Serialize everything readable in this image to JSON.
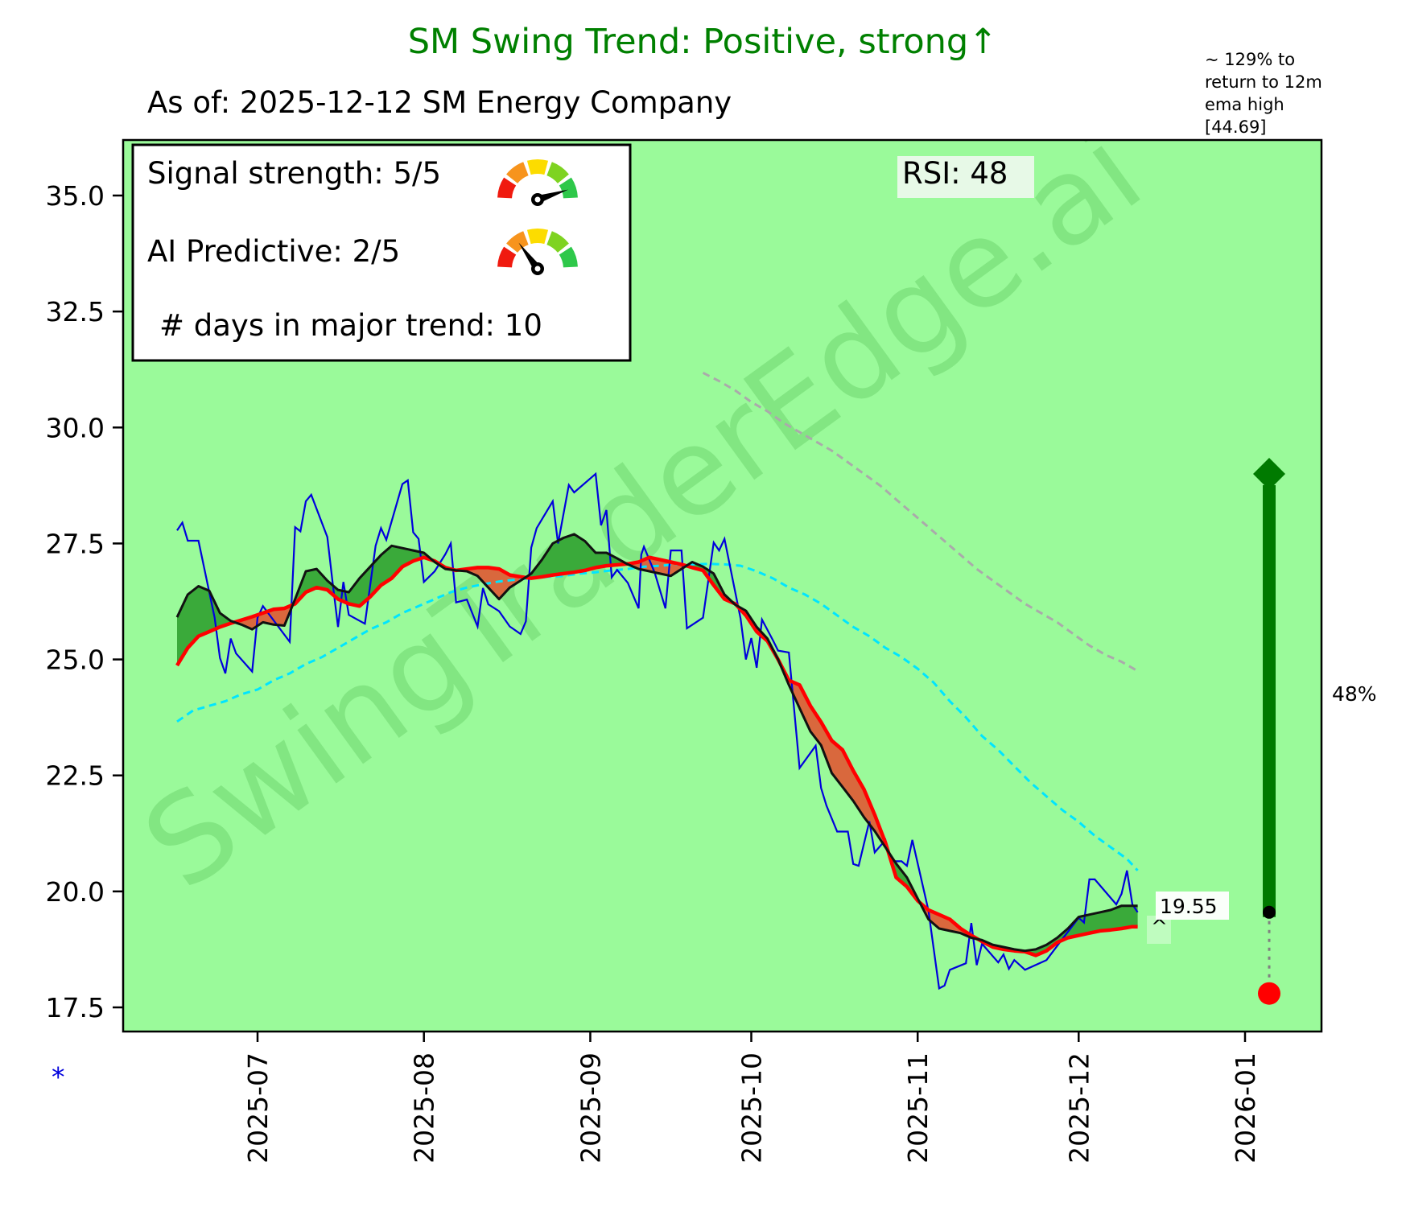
{
  "header": {
    "title": "SM  Swing Trend: Positive, strong↑",
    "subtitle": "As of: 2025-12-12    SM Energy Company",
    "ema_note_lines": [
      "~ 129% to",
      "return to 12m",
      "ema high",
      "[44.69]"
    ]
  },
  "legend": {
    "signal_strength": "Signal strength: 5/5",
    "signal_value": 5,
    "ai_predictive": "AI Predictive: 2/5",
    "ai_value": 2,
    "days_in_trend": "# days in major trend: 10",
    "gauge_colors": [
      "#f01a0f",
      "#f7941d",
      "#fcdc00",
      "#7ed321",
      "#2ec84a"
    ]
  },
  "rsi_label": "RSI:  48",
  "watermark": "SwingTraderEdge.ai",
  "footnote_marker": "*",
  "colors": {
    "background": "#9afa9a",
    "close": "#0000dd",
    "fast_ema": "#111111",
    "slow_ema": "#ff0000",
    "mid_ema": "#00e5ff",
    "long_ema": "#aaaaaa",
    "fill_up": "#3aaa3a",
    "fill_down": "#d9683d",
    "arrow": "#007a00",
    "target_dot": "#ff0000"
  },
  "chart_data": {
    "type": "line",
    "title": "SM  Swing Trend: Positive, strong↑",
    "xlabel": "",
    "ylabel": "",
    "x_origin_date": "2025-07-01",
    "x_units": "days since 2025-07-01",
    "xlim": [
      -25,
      202
    ],
    "ylim": [
      17.0,
      36.2
    ],
    "x_ticks": [
      {
        "day": 0,
        "label": "2025-07"
      },
      {
        "day": 31,
        "label": "2025-08"
      },
      {
        "day": 62,
        "label": "2025-09"
      },
      {
        "day": 92,
        "label": "2025-10"
      },
      {
        "day": 123,
        "label": "2025-11"
      },
      {
        "day": 153,
        "label": "2025-12"
      },
      {
        "day": 184,
        "label": "2026-01"
      }
    ],
    "y_ticks": [
      {
        "value": 17.5,
        "label": "17.5"
      },
      {
        "value": 20.0,
        "label": "20.0"
      },
      {
        "value": 22.5,
        "label": "22.5"
      },
      {
        "value": 25.0,
        "label": "25.0"
      },
      {
        "value": 27.5,
        "label": "27.5"
      },
      {
        "value": 30.0,
        "label": "30.0"
      },
      {
        "value": 32.5,
        "label": "32.5"
      },
      {
        "value": 35.0,
        "label": "35.0"
      }
    ],
    "grid": false,
    "series": [
      {
        "name": "close",
        "x": [
          -15,
          -14,
          -13,
          -11,
          -8,
          -7,
          -6,
          -5,
          -4,
          -1,
          0,
          1,
          6,
          7,
          8,
          9,
          10,
          13,
          14,
          15,
          16,
          17,
          20,
          22,
          23,
          24,
          27,
          28,
          29,
          30,
          31,
          33,
          35,
          36,
          37,
          39,
          41,
          42,
          43,
          45,
          47,
          49,
          50,
          51,
          52,
          55,
          56,
          58,
          59,
          63,
          64,
          65,
          66,
          67,
          69,
          71,
          71.5,
          72,
          74,
          76,
          77,
          79,
          80,
          83,
          85,
          86,
          87,
          90,
          91,
          92,
          93,
          94,
          96,
          97,
          99,
          101,
          104,
          105,
          106,
          108,
          110,
          111,
          112,
          114,
          115,
          117,
          118,
          120,
          121,
          122,
          125,
          127,
          128,
          129,
          132,
          133,
          134,
          135,
          138,
          139,
          140,
          141,
          143,
          147,
          150,
          153,
          154,
          155,
          156,
          160,
          161,
          162,
          163,
          164
        ],
        "y": [
          27.78,
          27.95,
          27.56,
          27.56,
          25.9,
          25.03,
          24.7,
          25.45,
          25.13,
          24.74,
          25.9,
          26.15,
          25.38,
          27.85,
          27.76,
          28.41,
          28.55,
          27.64,
          26.64,
          25.7,
          26.67,
          25.96,
          25.77,
          27.45,
          27.83,
          27.58,
          28.78,
          28.86,
          27.74,
          27.6,
          26.67,
          26.9,
          27.27,
          27.5,
          26.23,
          26.29,
          25.71,
          26.54,
          26.19,
          26.04,
          25.71,
          25.55,
          25.82,
          27.41,
          27.83,
          28.41,
          27.5,
          28.76,
          28.6,
          29.0,
          27.89,
          28.22,
          26.77,
          26.93,
          26.65,
          26.1,
          27.26,
          27.43,
          26.87,
          26.1,
          27.35,
          27.35,
          25.67,
          25.9,
          27.52,
          27.35,
          27.6,
          25.88,
          25.0,
          25.46,
          24.82,
          25.86,
          25.42,
          25.19,
          25.15,
          22.66,
          23.14,
          22.23,
          21.85,
          21.29,
          21.29,
          20.59,
          20.55,
          21.51,
          20.84,
          21.11,
          20.65,
          20.65,
          20.55,
          21.11,
          19.59,
          17.91,
          17.97,
          18.31,
          18.45,
          19.32,
          18.41,
          18.87,
          18.47,
          18.64,
          18.33,
          18.52,
          18.31,
          18.52,
          18.98,
          19.43,
          19.33,
          20.26,
          20.26,
          19.72,
          19.95,
          20.45,
          19.72,
          19.55
        ]
      },
      {
        "name": "fast_ema",
        "x": [
          -15,
          -13,
          -11,
          -9,
          -7,
          -5,
          -3,
          -1,
          1,
          3,
          5,
          7,
          9,
          11,
          13,
          15,
          17,
          19,
          21,
          23,
          25,
          27,
          29,
          31,
          33,
          35,
          37,
          39,
          41,
          43,
          45,
          47,
          49,
          51,
          53,
          55,
          57,
          59,
          61,
          63,
          65,
          67,
          69,
          71,
          73,
          75,
          77,
          79,
          81,
          83,
          85,
          87,
          89,
          91,
          93,
          95,
          97,
          99,
          101,
          103,
          105,
          107,
          109,
          111,
          113,
          115,
          117,
          119,
          121,
          123,
          125,
          127,
          129,
          131,
          133,
          135,
          137,
          139,
          141,
          143,
          145,
          147,
          149,
          151,
          153,
          155,
          157,
          159,
          161,
          163,
          164
        ],
        "y": [
          25.91,
          26.4,
          26.58,
          26.48,
          26.0,
          25.83,
          25.75,
          25.65,
          25.8,
          25.75,
          25.73,
          26.3,
          26.9,
          26.95,
          26.7,
          26.5,
          26.45,
          26.75,
          27.0,
          27.25,
          27.45,
          27.4,
          27.35,
          27.3,
          27.1,
          26.95,
          26.92,
          26.9,
          26.8,
          26.55,
          26.3,
          26.55,
          26.7,
          26.85,
          27.15,
          27.5,
          27.62,
          27.7,
          27.55,
          27.3,
          27.3,
          27.18,
          27.05,
          26.95,
          26.9,
          26.85,
          26.8,
          26.95,
          27.1,
          27.0,
          26.85,
          26.4,
          26.18,
          26.05,
          25.7,
          25.45,
          25.0,
          24.45,
          23.95,
          23.45,
          23.15,
          22.55,
          22.25,
          21.95,
          21.6,
          21.3,
          20.95,
          20.6,
          20.3,
          19.85,
          19.4,
          19.2,
          19.15,
          19.1,
          19.0,
          18.95,
          18.85,
          18.8,
          18.75,
          18.72,
          18.75,
          18.85,
          19.0,
          19.2,
          19.45,
          19.5,
          19.55,
          19.6,
          19.69,
          19.69,
          19.69
        ]
      },
      {
        "name": "slow_ema",
        "x": [
          -15,
          -13,
          -11,
          -9,
          -7,
          -5,
          -3,
          -1,
          1,
          3,
          5,
          7,
          9,
          11,
          13,
          15,
          17,
          19,
          21,
          23,
          25,
          27,
          29,
          31,
          33,
          35,
          37,
          39,
          41,
          43,
          45,
          47,
          49,
          51,
          53,
          55,
          57,
          59,
          61,
          63,
          65,
          67,
          69,
          71,
          73,
          75,
          77,
          79,
          81,
          83,
          85,
          87,
          89,
          91,
          93,
          95,
          97,
          99,
          101,
          103,
          105,
          107,
          109,
          111,
          113,
          115,
          117,
          119,
          121,
          123,
          125,
          127,
          129,
          131,
          133,
          135,
          137,
          139,
          141,
          143,
          145,
          147,
          149,
          151,
          153,
          155,
          157,
          159,
          161,
          163,
          164
        ],
        "y": [
          24.87,
          25.25,
          25.5,
          25.6,
          25.7,
          25.78,
          25.85,
          25.92,
          26.0,
          26.08,
          26.1,
          26.2,
          26.45,
          26.55,
          26.5,
          26.3,
          26.2,
          26.15,
          26.35,
          26.6,
          26.75,
          27.0,
          27.12,
          27.2,
          27.12,
          26.98,
          26.92,
          26.95,
          26.98,
          26.98,
          26.95,
          26.82,
          26.78,
          26.75,
          26.78,
          26.82,
          26.85,
          26.88,
          26.92,
          26.98,
          27.02,
          27.04,
          27.06,
          27.1,
          27.2,
          27.15,
          27.1,
          27.05,
          26.98,
          26.92,
          26.6,
          26.3,
          26.2,
          25.95,
          25.6,
          25.4,
          25.0,
          24.55,
          24.45,
          24.0,
          23.65,
          23.25,
          23.05,
          22.6,
          22.2,
          21.65,
          21.05,
          20.3,
          20.1,
          19.8,
          19.6,
          19.5,
          19.4,
          19.2,
          19.05,
          18.92,
          18.8,
          18.75,
          18.72,
          18.7,
          18.62,
          18.72,
          18.9,
          19.0,
          19.05,
          19.1,
          19.15,
          19.17,
          19.2,
          19.24,
          19.24
        ]
      },
      {
        "name": "mid_ema",
        "x": [
          -15,
          -12,
          -9,
          -6,
          -3,
          0,
          3,
          6,
          9,
          12,
          15,
          18,
          21,
          24,
          27,
          30,
          33,
          36,
          39,
          42,
          45,
          48,
          51,
          54,
          57,
          60,
          63,
          66,
          69,
          72,
          75,
          78,
          81,
          84,
          87,
          90,
          93,
          96,
          99,
          102,
          105,
          108,
          111,
          114,
          117,
          120,
          123,
          126,
          129,
          132,
          135,
          138,
          141,
          144,
          147,
          150,
          153,
          156,
          159,
          162,
          164
        ],
        "y": [
          23.66,
          23.9,
          24.0,
          24.1,
          24.25,
          24.35,
          24.55,
          24.7,
          24.9,
          25.05,
          25.25,
          25.45,
          25.65,
          25.8,
          26.0,
          26.15,
          26.3,
          26.45,
          26.55,
          26.62,
          26.68,
          26.72,
          26.75,
          26.78,
          26.8,
          26.85,
          26.88,
          26.92,
          26.95,
          27.0,
          27.02,
          27.05,
          27.05,
          27.06,
          27.05,
          27.02,
          26.9,
          26.75,
          26.55,
          26.4,
          26.2,
          25.95,
          25.7,
          25.5,
          25.25,
          25.05,
          24.8,
          24.5,
          24.1,
          23.75,
          23.35,
          23.05,
          22.7,
          22.35,
          22.05,
          21.75,
          21.5,
          21.2,
          20.95,
          20.7,
          20.45
        ]
      },
      {
        "name": "long_ema",
        "x": [
          83,
          86,
          89,
          92,
          95,
          98,
          101,
          104,
          107,
          110,
          113,
          116,
          119,
          122,
          125,
          128,
          131,
          134,
          137,
          140,
          143,
          146,
          149,
          152,
          155,
          158,
          161,
          164
        ],
        "y": [
          31.18,
          31.0,
          30.8,
          30.55,
          30.35,
          30.1,
          29.9,
          29.7,
          29.5,
          29.25,
          29.0,
          28.75,
          28.45,
          28.15,
          27.85,
          27.55,
          27.25,
          26.95,
          26.7,
          26.45,
          26.2,
          26.0,
          25.8,
          25.55,
          25.3,
          25.1,
          24.95,
          24.75
        ]
      }
    ],
    "annotations": {
      "last_price_label": "19.55",
      "last_price": 19.55,
      "caret": "^",
      "arrow_percent_label": "48%",
      "arrow_from": 19.55,
      "arrow_to": 29.0,
      "red_dot_value": 17.8,
      "arrow_day": 188.5
    }
  }
}
